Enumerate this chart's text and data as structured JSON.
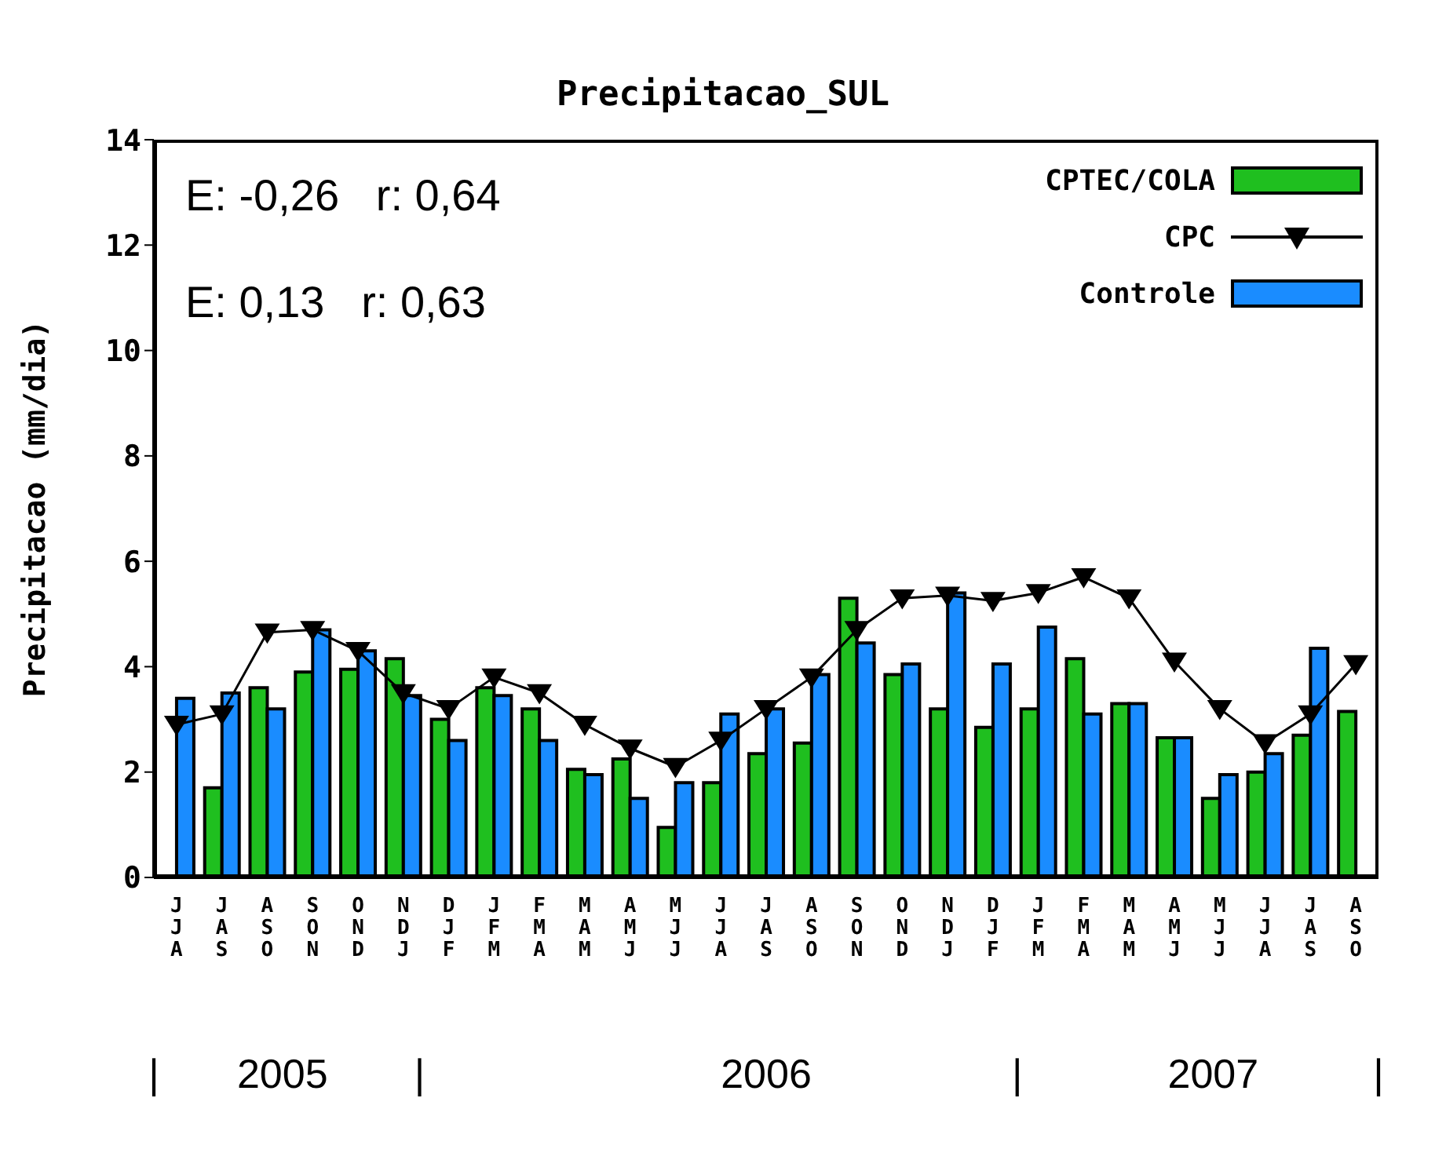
{
  "chart_data": {
    "type": "bar",
    "title": "Precipitacao_SUL",
    "ylabel": "Precipitacao (mm/dia)",
    "categories": [
      "JJA",
      "JAS",
      "ASO",
      "SON",
      "OND",
      "NDJ",
      "DJF",
      "JFM",
      "FMA",
      "MAM",
      "AMJ",
      "MJJ",
      "JJA",
      "JAS",
      "ASO",
      "SON",
      "OND",
      "NDJ",
      "DJF",
      "JFM",
      "FMA",
      "MAM",
      "AMJ",
      "MJJ",
      "JJA",
      "JAS",
      "ASO"
    ],
    "series": [
      {
        "name": "CPTEC/COLA",
        "color": "#1fbf1f",
        "values": [
          null,
          1.7,
          3.6,
          3.9,
          3.95,
          4.15,
          3.0,
          3.6,
          3.2,
          2.05,
          2.25,
          0.95,
          1.8,
          2.35,
          2.55,
          5.3,
          3.85,
          3.2,
          2.85,
          3.2,
          4.15,
          3.3,
          2.65,
          1.5,
          2.0,
          2.7,
          3.15
        ]
      },
      {
        "name": "CPC",
        "type": "line",
        "color": "#000000",
        "values": [
          2.9,
          3.1,
          4.65,
          4.7,
          4.3,
          3.5,
          3.2,
          3.8,
          3.5,
          2.9,
          2.45,
          2.1,
          2.6,
          3.2,
          3.8,
          4.7,
          5.3,
          5.35,
          5.25,
          5.4,
          5.7,
          5.3,
          4.1,
          3.2,
          2.55,
          3.1,
          4.05
        ]
      },
      {
        "name": "Controle",
        "color": "#1a8cff",
        "values": [
          3.4,
          3.5,
          3.2,
          4.7,
          4.3,
          3.45,
          2.6,
          3.45,
          2.6,
          1.95,
          1.5,
          1.8,
          3.1,
          3.2,
          3.85,
          4.45,
          4.05,
          5.4,
          4.05,
          4.75,
          3.1,
          3.3,
          2.65,
          1.95,
          2.35,
          4.35,
          null
        ]
      }
    ],
    "ylim": [
      0,
      14
    ],
    "yticks": [
      0,
      2,
      4,
      6,
      8,
      10,
      12,
      14
    ],
    "legend": "top right",
    "marker": "triangle",
    "line_style": "solid",
    "annotations": [
      "E: -0,26   r: 0,64",
      "E: 0,13   r: 0,63",
      "|",
      "2005",
      "|",
      "2006",
      "|",
      "2007",
      "|"
    ]
  }
}
